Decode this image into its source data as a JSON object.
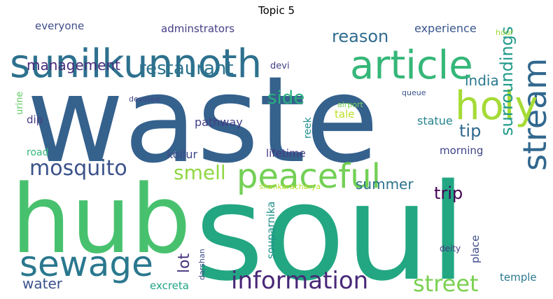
{
  "chart_data": {
    "type": "wordcloud",
    "title": "Topic 5",
    "colormap": "viridis",
    "background": "#ffffff",
    "words": [
      {
        "text": "waste",
        "color": "#35618d"
      },
      {
        "text": "soul",
        "color": "#23a783"
      },
      {
        "text": "hub",
        "color": "#48c16e"
      },
      {
        "text": "sunilkunnoth",
        "color": "#2d718e"
      },
      {
        "text": "article",
        "color": "#35b779"
      },
      {
        "text": "peaceful",
        "color": "#73d055"
      },
      {
        "text": "stream",
        "color": "#31688e"
      },
      {
        "text": "holy",
        "color": "#a5db36"
      },
      {
        "text": "sewage",
        "color": "#2a788e"
      },
      {
        "text": "mosquito",
        "color": "#3b528b"
      },
      {
        "text": "information",
        "color": "#482878"
      },
      {
        "text": "street",
        "color": "#7ad151"
      },
      {
        "text": "restaurant",
        "color": "#2c738e"
      },
      {
        "text": "reason",
        "color": "#2f6b8e"
      },
      {
        "text": "management",
        "color": "#472d7b"
      },
      {
        "text": "smell",
        "color": "#90d743"
      },
      {
        "text": "surroundings",
        "color": "#1f9a8a"
      },
      {
        "text": "india",
        "color": "#2a788e"
      },
      {
        "text": "side",
        "color": "#2ab07f"
      },
      {
        "text": "tip",
        "color": "#31688e"
      },
      {
        "text": "trip",
        "color": "#440154"
      },
      {
        "text": "summer",
        "color": "#2c728e"
      },
      {
        "text": "water",
        "color": "#3b528b"
      },
      {
        "text": "lot",
        "color": "#46327e"
      },
      {
        "text": "experience",
        "color": "#39568c"
      },
      {
        "text": "everyone",
        "color": "#3e4c8a"
      },
      {
        "text": "adminstrators",
        "color": "#433e85"
      },
      {
        "text": "hour",
        "color": "#a0da39"
      },
      {
        "text": "devi",
        "color": "#424086"
      },
      {
        "text": "urine",
        "color": "#5ec962"
      },
      {
        "text": "devotee",
        "color": "#414487"
      },
      {
        "text": "airport",
        "color": "#7ad151"
      },
      {
        "text": "queue",
        "color": "#3b528b"
      },
      {
        "text": "dip",
        "color": "#443983"
      },
      {
        "text": "pathway",
        "color": "#424086"
      },
      {
        "text": "reek",
        "color": "#218f8d"
      },
      {
        "text": "tale",
        "color": "#bddf26"
      },
      {
        "text": "statue",
        "color": "#25848e"
      },
      {
        "text": "road",
        "color": "#32b67a"
      },
      {
        "text": "kollur",
        "color": "#3e4a89"
      },
      {
        "text": "lifetime",
        "color": "#443983"
      },
      {
        "text": "morning",
        "color": "#414487"
      },
      {
        "text": "shankaracharya",
        "color": "#b5de2b"
      },
      {
        "text": "souparnika",
        "color": "#21918c"
      },
      {
        "text": "place",
        "color": "#3e4c8a"
      },
      {
        "text": "darshan",
        "color": "#3e4c8a"
      },
      {
        "text": "deity",
        "color": "#453781"
      },
      {
        "text": "excreta",
        "color": "#20a386"
      },
      {
        "text": "temple",
        "color": "#2a788e"
      }
    ]
  }
}
